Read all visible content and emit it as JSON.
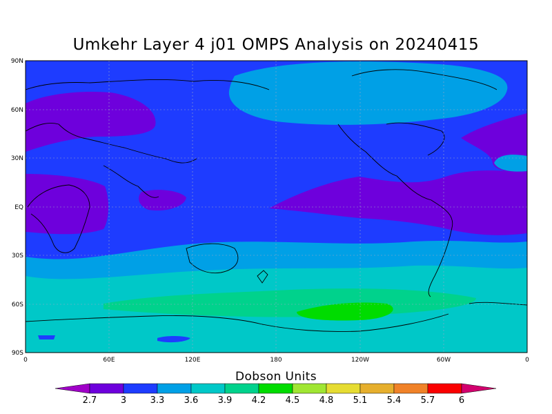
{
  "title": "Umkehr Layer 4 j01 OMPS Analysis on 20240415",
  "map": {
    "lat_labels": [
      "90N",
      "60N",
      "30N",
      "EQ",
      "30S",
      "60S",
      "90S"
    ],
    "lon_labels": [
      "0",
      "60E",
      "120E",
      "180",
      "120W",
      "60W",
      "0"
    ],
    "gridlines": "dotted"
  },
  "colorbar": {
    "title": "Dobson Units",
    "levels": [
      "2.7",
      "3",
      "3.3",
      "3.6",
      "3.9",
      "4.2",
      "4.5",
      "4.8",
      "5.1",
      "5.4",
      "5.7",
      "6"
    ],
    "colors": [
      "#a000c8",
      "#6e00dc",
      "#1e3cff",
      "#00a0e6",
      "#00c8c8",
      "#00d28c",
      "#00dc00",
      "#a0e632",
      "#e6dc32",
      "#e6af2d",
      "#f08228",
      "#fa0000",
      "#d2006e"
    ]
  }
}
